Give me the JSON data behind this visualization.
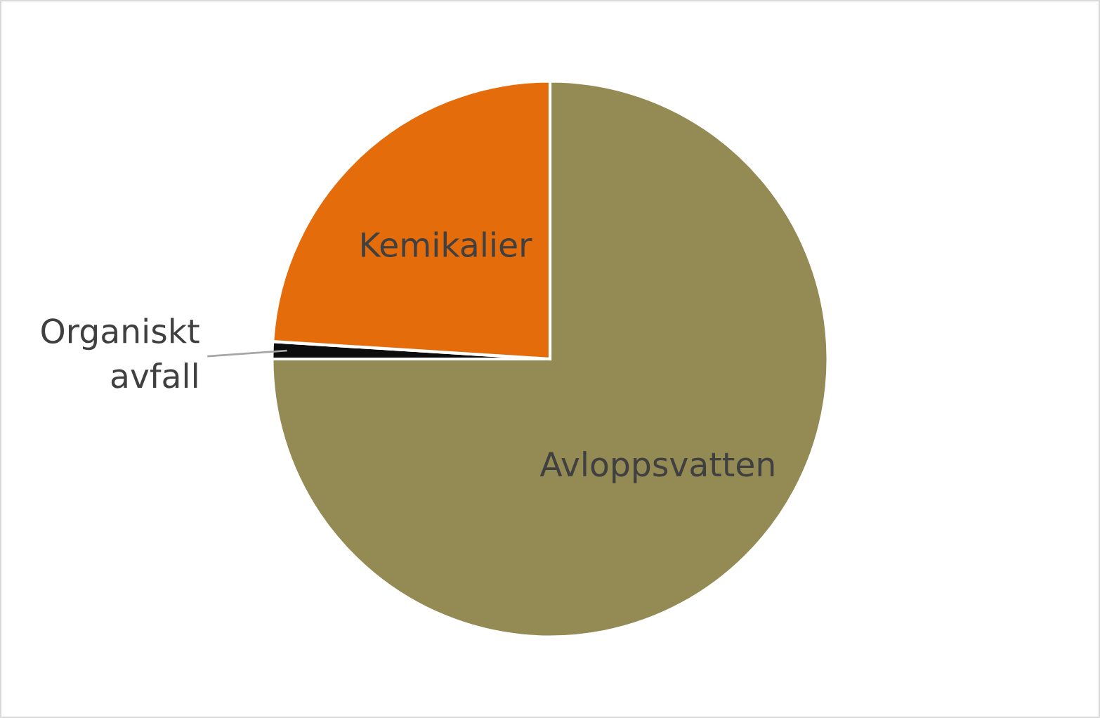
{
  "chart_data": {
    "type": "pie",
    "categories": [
      "Avloppsvatten",
      "Organiskt\navfall",
      "Kemikalier"
    ],
    "values": [
      75,
      1,
      24
    ],
    "colors": [
      "#948a54",
      "#0d0d0d",
      "#e46c0a"
    ]
  }
}
